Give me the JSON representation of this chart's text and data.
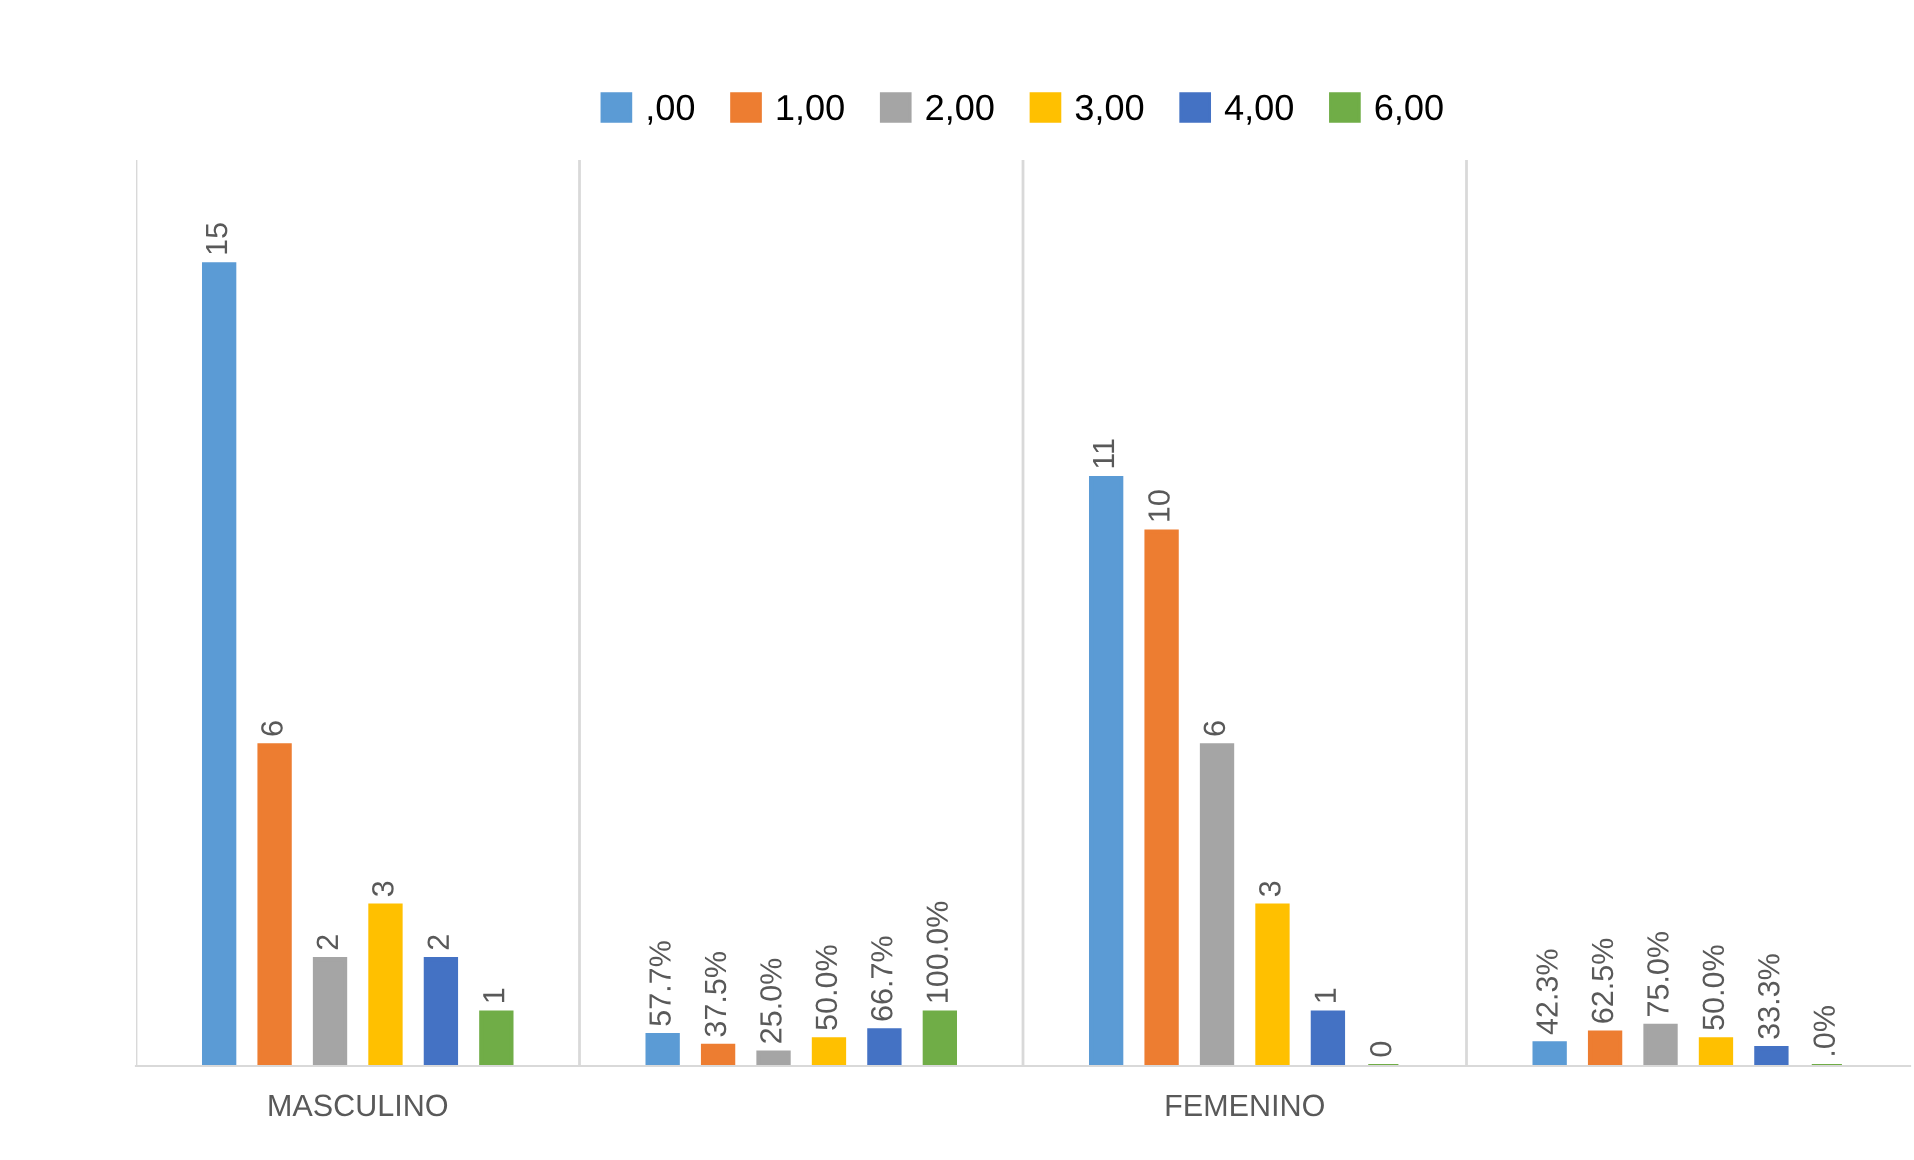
{
  "chart_data": {
    "type": "bar",
    "categories": [
      "MASCULINO",
      null,
      "FEMENINO",
      null
    ],
    "series": [
      {
        "name": ",00",
        "color": "#5b9bd5",
        "values": [
          15,
          0.577,
          11,
          0.423
        ],
        "value_labels": [
          "15",
          "57.7%",
          "11",
          "42.3%"
        ]
      },
      {
        "name": "1,00",
        "color": "#ed7d31",
        "values": [
          6,
          0.375,
          10,
          0.625
        ],
        "value_labels": [
          "6",
          "37.5%",
          "10",
          "62.5%"
        ]
      },
      {
        "name": "2,00",
        "color": "#a5a5a5",
        "values": [
          2,
          0.25,
          6,
          0.75
        ],
        "value_labels": [
          "2",
          "25.0%",
          "6",
          "75.0%"
        ]
      },
      {
        "name": "3,00",
        "color": "#ffc000",
        "values": [
          3,
          0.5,
          3,
          0.5
        ],
        "value_labels": [
          "3",
          "50.0%",
          "3",
          "50.0%"
        ]
      },
      {
        "name": "4,00",
        "color": "#4472c4",
        "values": [
          2,
          0.667,
          1,
          0.333
        ],
        "value_labels": [
          "2",
          "66.7%",
          "1",
          "33.3%"
        ]
      },
      {
        "name": "6,00",
        "color": "#70ad47",
        "values": [
          1,
          1,
          0,
          0
        ],
        "value_labels": [
          "1",
          "100.0%",
          "0",
          ".0%"
        ]
      }
    ],
    "grid": "x",
    "legend": "top"
  }
}
